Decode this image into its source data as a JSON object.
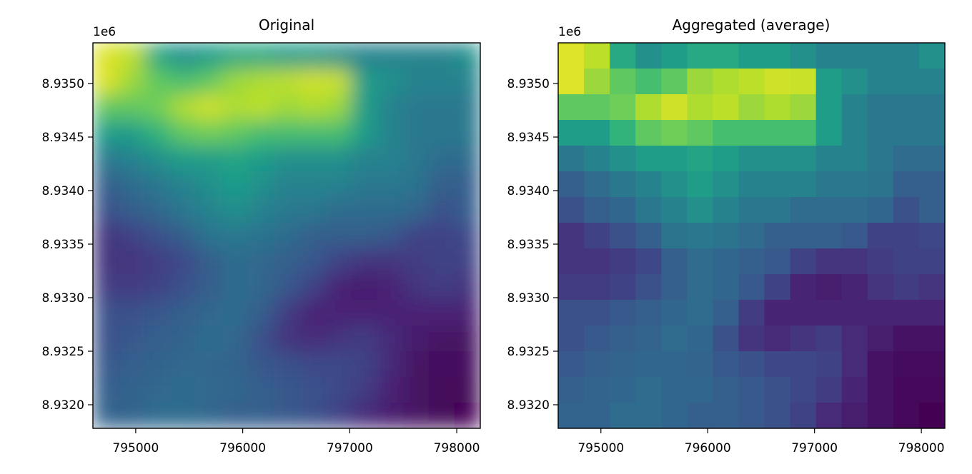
{
  "figure": {
    "colormap": "viridis",
    "colormap_stops": [
      "#440154",
      "#482878",
      "#3e4989",
      "#31688e",
      "#26828e",
      "#1f9e89",
      "#35b779",
      "#6ece58",
      "#b5de2b",
      "#fde725"
    ]
  },
  "chart_data": [
    {
      "type": "heatmap",
      "title": "Original",
      "xlabel": "",
      "ylabel": "",
      "x_extent": [
        794600,
        798220
      ],
      "y_extent": [
        8931780,
        8935380
      ],
      "xlim": [
        794600,
        798220
      ],
      "ylim": [
        8931780,
        8935380
      ],
      "x_ticks": [
        795000,
        796000,
        797000,
        798000
      ],
      "x_tick_labels": [
        "795000",
        "796000",
        "797000",
        "798000"
      ],
      "y_ticks": [
        8932000,
        8932500,
        8933000,
        8933500,
        8934000,
        8934500,
        8935000
      ],
      "y_tick_labels": [
        "8.9320",
        "8.9325",
        "8.9330",
        "8.9335",
        "8.9340",
        "8.9345",
        "8.9350"
      ],
      "y_offset_label": "1e6",
      "grid": false,
      "smooth": true,
      "rows": 15,
      "cols": 15,
      "values": [
        [
          0.95,
          0.9,
          0.6,
          0.5,
          0.55,
          0.6,
          0.6,
          0.55,
          0.55,
          0.5,
          0.45,
          0.45,
          0.45,
          0.45,
          0.5
        ],
        [
          0.95,
          0.85,
          0.75,
          0.7,
          0.75,
          0.85,
          0.88,
          0.9,
          0.93,
          0.92,
          0.55,
          0.5,
          0.45,
          0.45,
          0.45
        ],
        [
          0.75,
          0.75,
          0.78,
          0.88,
          0.93,
          0.88,
          0.9,
          0.85,
          0.88,
          0.85,
          0.55,
          0.45,
          0.4,
          0.4,
          0.4
        ],
        [
          0.55,
          0.55,
          0.65,
          0.75,
          0.78,
          0.75,
          0.7,
          0.7,
          0.7,
          0.7,
          0.55,
          0.45,
          0.4,
          0.4,
          0.4
        ],
        [
          0.4,
          0.45,
          0.5,
          0.55,
          0.55,
          0.58,
          0.55,
          0.5,
          0.5,
          0.5,
          0.45,
          0.45,
          0.4,
          0.35,
          0.35
        ],
        [
          0.3,
          0.35,
          0.4,
          0.45,
          0.5,
          0.55,
          0.5,
          0.45,
          0.45,
          0.45,
          0.4,
          0.4,
          0.38,
          0.3,
          0.3
        ],
        [
          0.25,
          0.3,
          0.33,
          0.4,
          0.45,
          0.5,
          0.45,
          0.4,
          0.4,
          0.35,
          0.35,
          0.35,
          0.33,
          0.25,
          0.3
        ],
        [
          0.15,
          0.2,
          0.25,
          0.3,
          0.38,
          0.4,
          0.38,
          0.35,
          0.3,
          0.3,
          0.3,
          0.28,
          0.2,
          0.2,
          0.22
        ],
        [
          0.15,
          0.15,
          0.18,
          0.22,
          0.3,
          0.35,
          0.33,
          0.3,
          0.28,
          0.2,
          0.15,
          0.15,
          0.18,
          0.2,
          0.2
        ],
        [
          0.18,
          0.18,
          0.2,
          0.25,
          0.3,
          0.35,
          0.33,
          0.28,
          0.2,
          0.1,
          0.08,
          0.1,
          0.15,
          0.18,
          0.15
        ],
        [
          0.25,
          0.25,
          0.28,
          0.3,
          0.33,
          0.35,
          0.3,
          0.18,
          0.1,
          0.1,
          0.1,
          0.1,
          0.1,
          0.1,
          0.1
        ],
        [
          0.25,
          0.28,
          0.3,
          0.32,
          0.35,
          0.33,
          0.25,
          0.15,
          0.12,
          0.15,
          0.18,
          0.12,
          0.08,
          0.05,
          0.05
        ],
        [
          0.28,
          0.3,
          0.32,
          0.33,
          0.33,
          0.32,
          0.28,
          0.25,
          0.22,
          0.22,
          0.2,
          0.12,
          0.05,
          0.03,
          0.03
        ],
        [
          0.3,
          0.32,
          0.33,
          0.35,
          0.33,
          0.33,
          0.3,
          0.28,
          0.25,
          0.22,
          0.18,
          0.1,
          0.05,
          0.02,
          0.02
        ],
        [
          0.32,
          0.32,
          0.35,
          0.35,
          0.33,
          0.3,
          0.3,
          0.28,
          0.25,
          0.2,
          0.12,
          0.08,
          0.05,
          0.02,
          0.0
        ]
      ]
    },
    {
      "type": "heatmap",
      "title": "Aggregated (average)",
      "xlabel": "",
      "ylabel": "",
      "x_extent": [
        794600,
        798220
      ],
      "y_extent": [
        8931780,
        8935380
      ],
      "xlim": [
        794600,
        798220
      ],
      "ylim": [
        8931780,
        8935380
      ],
      "x_ticks": [
        795000,
        796000,
        797000,
        798000
      ],
      "x_tick_labels": [
        "795000",
        "796000",
        "797000",
        "798000"
      ],
      "y_ticks": [
        8932000,
        8932500,
        8933000,
        8933500,
        8934000,
        8934500,
        8935000
      ],
      "y_tick_labels": [
        "8.9320",
        "8.9325",
        "8.9330",
        "8.9335",
        "8.9340",
        "8.9345",
        "8.9350"
      ],
      "y_offset_label": "1e6",
      "grid": false,
      "smooth": false,
      "rows": 15,
      "cols": 15,
      "values": [
        [
          0.95,
          0.9,
          0.6,
          0.5,
          0.55,
          0.6,
          0.6,
          0.55,
          0.55,
          0.5,
          0.45,
          0.45,
          0.45,
          0.45,
          0.5
        ],
        [
          0.95,
          0.85,
          0.75,
          0.7,
          0.75,
          0.85,
          0.88,
          0.9,
          0.93,
          0.92,
          0.55,
          0.5,
          0.45,
          0.45,
          0.45
        ],
        [
          0.75,
          0.75,
          0.78,
          0.88,
          0.93,
          0.88,
          0.9,
          0.85,
          0.88,
          0.85,
          0.55,
          0.45,
          0.4,
          0.4,
          0.4
        ],
        [
          0.55,
          0.55,
          0.65,
          0.75,
          0.78,
          0.75,
          0.7,
          0.7,
          0.7,
          0.7,
          0.55,
          0.45,
          0.4,
          0.4,
          0.4
        ],
        [
          0.4,
          0.45,
          0.5,
          0.55,
          0.55,
          0.58,
          0.55,
          0.5,
          0.5,
          0.5,
          0.45,
          0.45,
          0.4,
          0.35,
          0.35
        ],
        [
          0.3,
          0.35,
          0.4,
          0.45,
          0.5,
          0.55,
          0.5,
          0.45,
          0.45,
          0.45,
          0.4,
          0.4,
          0.38,
          0.3,
          0.3
        ],
        [
          0.25,
          0.3,
          0.33,
          0.4,
          0.45,
          0.5,
          0.45,
          0.4,
          0.4,
          0.35,
          0.35,
          0.35,
          0.33,
          0.25,
          0.3
        ],
        [
          0.15,
          0.2,
          0.25,
          0.3,
          0.38,
          0.4,
          0.38,
          0.35,
          0.3,
          0.3,
          0.3,
          0.28,
          0.2,
          0.2,
          0.22
        ],
        [
          0.15,
          0.15,
          0.18,
          0.22,
          0.3,
          0.35,
          0.33,
          0.3,
          0.28,
          0.2,
          0.15,
          0.15,
          0.18,
          0.2,
          0.2
        ],
        [
          0.18,
          0.18,
          0.2,
          0.25,
          0.3,
          0.35,
          0.33,
          0.28,
          0.2,
          0.1,
          0.08,
          0.1,
          0.15,
          0.18,
          0.15
        ],
        [
          0.25,
          0.25,
          0.28,
          0.3,
          0.33,
          0.35,
          0.3,
          0.18,
          0.1,
          0.1,
          0.1,
          0.1,
          0.1,
          0.1,
          0.1
        ],
        [
          0.25,
          0.28,
          0.3,
          0.32,
          0.35,
          0.33,
          0.25,
          0.15,
          0.12,
          0.15,
          0.18,
          0.12,
          0.08,
          0.05,
          0.05
        ],
        [
          0.28,
          0.3,
          0.32,
          0.33,
          0.33,
          0.32,
          0.28,
          0.25,
          0.22,
          0.22,
          0.2,
          0.12,
          0.05,
          0.03,
          0.03
        ],
        [
          0.3,
          0.32,
          0.33,
          0.35,
          0.33,
          0.33,
          0.3,
          0.28,
          0.25,
          0.22,
          0.18,
          0.1,
          0.05,
          0.02,
          0.02
        ],
        [
          0.32,
          0.32,
          0.35,
          0.35,
          0.33,
          0.3,
          0.3,
          0.28,
          0.25,
          0.2,
          0.12,
          0.08,
          0.05,
          0.02,
          0.0
        ]
      ]
    }
  ]
}
